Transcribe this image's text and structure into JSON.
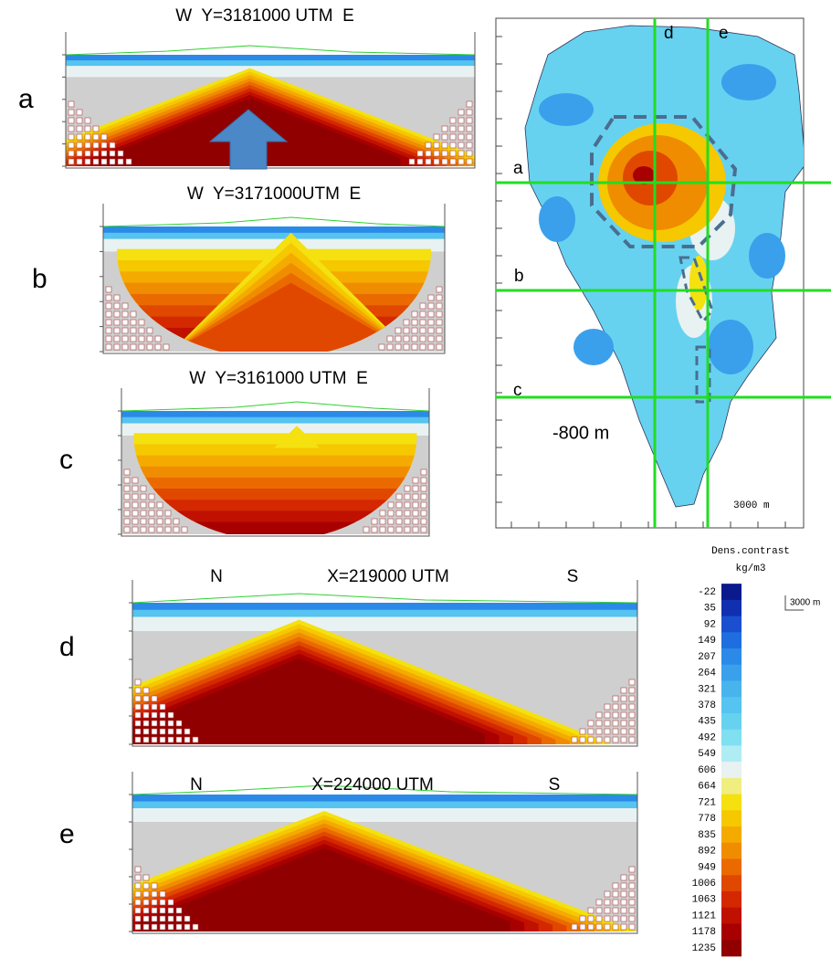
{
  "panels": [
    {
      "label": "a",
      "title": "W  Y=3181000 UTM  E"
    },
    {
      "label": "b",
      "title": "W  Y=3171000UTM  E"
    },
    {
      "label": "c",
      "title": "W  Y=3161000 UTM  E"
    },
    {
      "label": "d",
      "title_left": "N",
      "title": "X=219000 UTM",
      "title_right": "S"
    },
    {
      "label": "e",
      "title_left": "N",
      "title": "X=224000 UTM",
      "title_right": "S"
    }
  ],
  "map": {
    "line_labels": [
      "d",
      "e",
      "a",
      "b",
      "c"
    ],
    "depth": "-800 m",
    "scale": "3000 m"
  },
  "colorbar": {
    "title": "Dens.contrast",
    "unit": "kg/m3",
    "labels": [
      -22,
      35,
      92,
      149,
      207,
      264,
      321,
      378,
      435,
      492,
      549,
      606,
      664,
      721,
      778,
      835,
      892,
      949,
      1006,
      1063,
      1121,
      1178,
      1235
    ],
    "scale": "3000 m"
  }
}
